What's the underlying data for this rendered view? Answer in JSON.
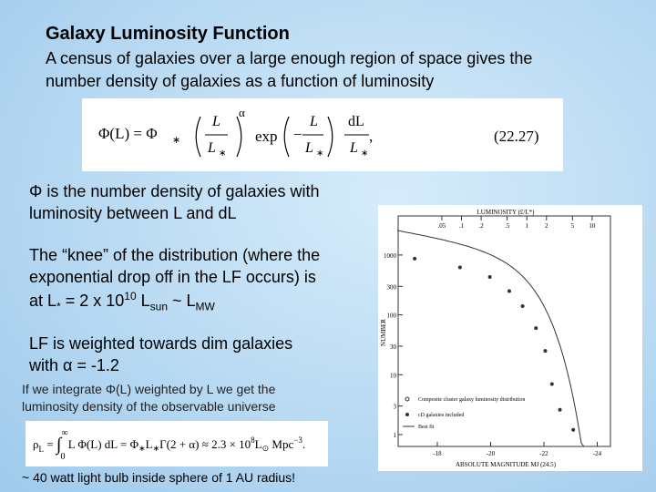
{
  "header": {
    "title": "Galaxy Luminosity Function",
    "subtitle": [
      "A census of galaxies over a large enough region of space gives the",
      "number density of galaxies as a function of luminosity"
    ]
  },
  "equation1": {
    "parts": [
      "Φ(L) = Φ",
      "∗",
      "L",
      "L",
      "∗",
      "α",
      "exp",
      "−",
      "L",
      "L",
      "∗",
      "dL",
      "L",
      "∗",
      ",",
      "(22.27)"
    ]
  },
  "paragraph1": [
    "Φ is the number density of galaxies with",
    "luminosity between L and dL"
  ],
  "paragraph2": {
    "lines": [
      "The “knee” of the distribution (where the",
      "exponential drop off in the LF occurs) is"
    ],
    "last": [
      "at L",
      "*",
      " = 2 x 10",
      "10",
      " L",
      "sun",
      " ~ L",
      "MW"
    ]
  },
  "paragraph3": [
    "LF is weighted towards dim galaxies",
    "with α = -1.2"
  ],
  "note": [
    "If we integrate Φ(L) weighted by L we get the",
    "luminosity density of the observable universe"
  ],
  "equation2": {
    "parts": [
      "ρ",
      "L",
      " = ",
      "∫",
      "∞",
      "0",
      " L Φ(L) dL = Φ",
      "∗",
      "L",
      "∗",
      "Γ(2 + α) ≈ 2.3 × 10",
      "8",
      "L",
      "⊙",
      " Mpc",
      "−3",
      "."
    ]
  },
  "footer": "~ 40 watt light bulb inside sphere of 1 AU radius!",
  "figure": {
    "top_axis_label": "LUMINOSITY (£/L*)",
    "top_ticks": [
      {
        "value": 0.05,
        "label": ".05"
      },
      {
        "value": 0.1,
        "label": ".1"
      },
      {
        "value": 0.2,
        "label": ".2"
      },
      {
        "value": 0.5,
        "label": ".5"
      },
      {
        "value": 1,
        "label": "1"
      },
      {
        "value": 2,
        "label": "2"
      },
      {
        "value": 5,
        "label": "5"
      },
      {
        "value": 10,
        "label": "10"
      }
    ],
    "ylabel": "NUMBER",
    "yticks": [
      1000,
      300,
      100,
      30,
      10,
      3,
      1
    ],
    "xlabel": "ABSOLUTE MAGNITUDE MJ (24.5)",
    "xticks": [
      -18,
      -20,
      -22,
      -24
    ],
    "legend": [
      "Composite cluster galaxy luminosity distribution",
      "cD galaxies included",
      "Best fit"
    ],
    "points": {
      "x": [
        -17.15,
        -18.85,
        -19.97,
        -20.7,
        -21.2,
        -21.7,
        -22.05,
        -22.3,
        -22.6,
        -23.1
      ],
      "y": [
        870,
        620,
        430,
        250,
        140,
        60,
        25,
        7,
        2.6,
        1.2
      ]
    }
  }
}
